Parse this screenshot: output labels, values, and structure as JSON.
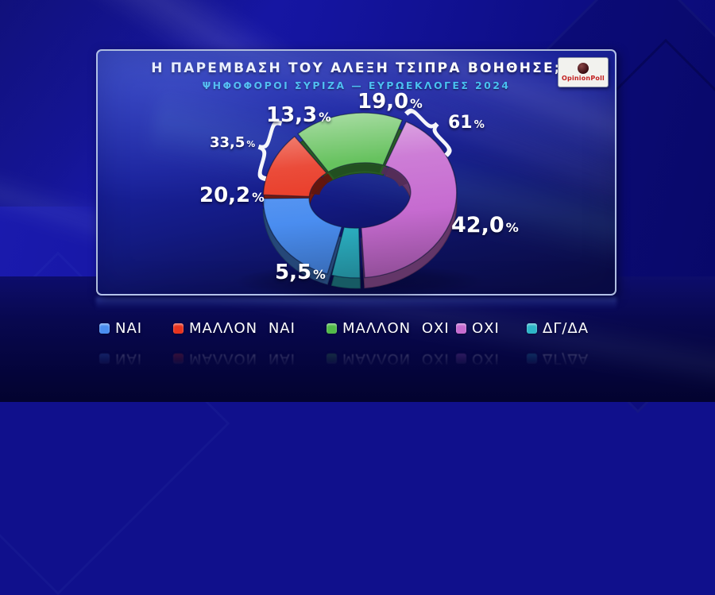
{
  "chart_data": {
    "type": "pie",
    "variant": "3d-donut",
    "title": "Η ΠΑΡΕΜΒΑΣΗ ΤΟΥ ΑΛΕΞΗ ΤΣΙΠΡΑ ΒΟΗΘΗΣΕ;",
    "subtitle": "ΨΗΦΟΦΟΡΟΙ ΣΥΡΙΖΑ — ΕΥΡΩΕΚΛΟΓΕΣ 2024",
    "unit": "%",
    "percent_sign": "%",
    "segments": [
      {
        "label": "ΝΑΙ",
        "value": 20.2,
        "display": "20,2",
        "color": "#4a8df0"
      },
      {
        "label": "ΜΑΛΛΟΝ ΝΑΙ",
        "value": 13.3,
        "display": "13,3",
        "color": "#e8341f"
      },
      {
        "label": "ΜΑΛΛΟΝ ΟΧΙ",
        "value": 19.0,
        "display": "19,0",
        "color": "#52ba49"
      },
      {
        "label": "ΟΧΙ",
        "value": 42.0,
        "display": "42,0",
        "color": "#c66bd0"
      },
      {
        "label": "ΔΓ/ΔΑ",
        "value": 5.5,
        "display": "5,5",
        "color": "#2db5c8"
      }
    ],
    "aggregates": {
      "yes_total": {
        "label": "ΝΑΙ + ΜΑΛΛΟΝ ΝΑΙ",
        "value": 33.5,
        "display": "33,5"
      },
      "no_total": {
        "label": "ΜΑΛΛΟΝ ΟΧΙ + ΟΧΙ",
        "value": 61,
        "display": "61"
      }
    },
    "draw_order": [
      2,
      3,
      4,
      0,
      1
    ],
    "start_angle_deg": -36,
    "legend_position": "bottom",
    "brace_left": "{",
    "brace_right": "}"
  },
  "logo": {
    "brand": "OpinionPoll"
  }
}
